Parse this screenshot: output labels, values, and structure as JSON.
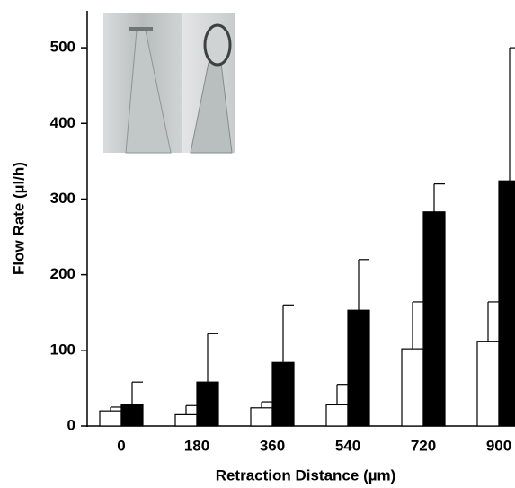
{
  "chart_data": {
    "type": "bar",
    "y_label": "Flow Rate (µl/h)",
    "x_label": "Retraction Distance (µm)",
    "categories": [
      "0",
      "180",
      "360",
      "540",
      "720",
      "900"
    ],
    "series": [
      {
        "color": "#ffffff",
        "values": [
          20,
          15,
          24,
          28,
          102,
          112
        ],
        "errors": [
          5,
          12,
          8,
          27,
          62,
          52
        ]
      },
      {
        "color": "#000000",
        "values": [
          28,
          58,
          84,
          153,
          283,
          324
        ],
        "errors": [
          30,
          64,
          76,
          67,
          37,
          176
        ]
      }
    ],
    "ylim": [
      0,
      550
    ],
    "yticks": [
      0,
      100,
      200,
      300,
      400,
      500
    ]
  }
}
